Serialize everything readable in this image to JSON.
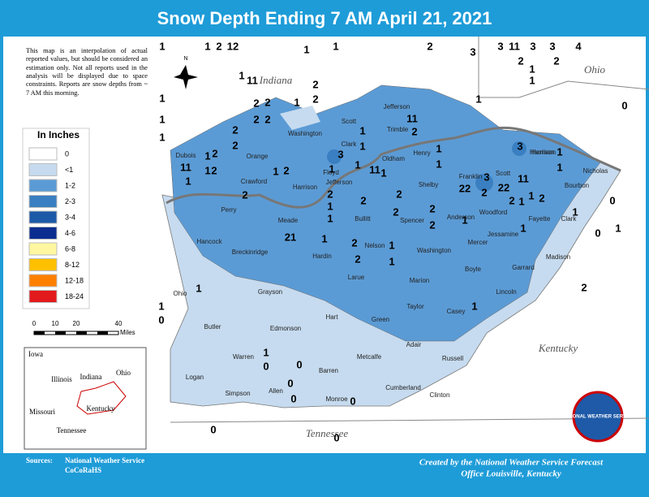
{
  "header": {
    "title": "Snow Depth Ending 7 AM April 21, 2021"
  },
  "note": "This map is an interpolation of actual reported values, but should be considered an estimation only. Not all reports used in the analysis will be displayed due to space constraints. Reports are snow depths from ~ 7 AM this morning.",
  "legend": {
    "title": "In Inches",
    "items": [
      {
        "label": "0",
        "color": "#ffffff"
      },
      {
        "label": "<1",
        "color": "#c6dbef"
      },
      {
        "label": "1-2",
        "color": "#5b9bd5"
      },
      {
        "label": "2-3",
        "color": "#3a7fc1"
      },
      {
        "label": "3-4",
        "color": "#1c5aa8"
      },
      {
        "label": "4-6",
        "color": "#0b2d8f"
      },
      {
        "label": "6-8",
        "color": "#fff7a0"
      },
      {
        "label": "8-12",
        "color": "#ffc000"
      },
      {
        "label": "12-18",
        "color": "#ff7f00"
      },
      {
        "label": "18-24",
        "color": "#e31a1c"
      }
    ]
  },
  "scale": {
    "labels": [
      "0",
      "10",
      "20",
      "40"
    ],
    "unit": "Miles"
  },
  "north": "N",
  "inset": {
    "labels": [
      "Iowa",
      "Illinois",
      "Indiana",
      "Ohio",
      "Missouri",
      "Kentucky",
      "Tennessee"
    ]
  },
  "map": {
    "states": [
      "Indiana",
      "Ohio",
      "Kentucky",
      "Tennessee"
    ],
    "counties": [
      "Dubois",
      "Orange",
      "Washington",
      "Clark",
      "Scott",
      "Jefferson",
      "Trimble",
      "Harrison",
      "Floyd",
      "Crawford",
      "Perry",
      "Harrison",
      "Jefferson",
      "Oldham",
      "Henry",
      "Shelby",
      "Franklin",
      "Scott",
      "Harrison",
      "Nicholas",
      "Bourbon",
      "Woodford",
      "Fayette",
      "Clark",
      "Jessamine",
      "Anderson",
      "Spencer",
      "Bullitt",
      "Meade",
      "Hancock",
      "Breckinridge",
      "Hardin",
      "Nelson",
      "Washington",
      "Mercer",
      "Boyle",
      "Garrard",
      "Madison",
      "Larue",
      "Marion",
      "Lincoln",
      "Ohio",
      "Grayson",
      "Hart",
      "Taylor",
      "Casey",
      "Green",
      "Butler",
      "Edmonson",
      "Adair",
      "Russell",
      "Warren",
      "Metcalfe",
      "Barren",
      "Logan",
      "Simpson",
      "Allen",
      "Monroe",
      "Cumberland",
      "Clinton"
    ],
    "reports": [
      "1",
      "1",
      "2",
      "12",
      "1",
      "1",
      "2",
      "3",
      "3",
      "11",
      "3",
      "3",
      "4",
      "2",
      "2",
      "1",
      "1",
      "1",
      "0",
      "1",
      "1",
      "1",
      "1",
      "11",
      "2",
      "2",
      "2",
      "2",
      "1",
      "2",
      "2",
      "2",
      "2",
      "1",
      "2",
      "11",
      "1",
      "2",
      "1",
      "1",
      "2",
      "3",
      "1",
      "1",
      "1",
      "1",
      "11",
      "1",
      "11",
      "2",
      "1",
      "1",
      "3",
      "1",
      "1",
      "22",
      "3",
      "2",
      "22",
      "11",
      "2",
      "1",
      "1",
      "2",
      "1",
      "2",
      "2",
      "1",
      "2",
      "2",
      "1",
      "2",
      "2",
      "2",
      "1",
      "1",
      "0",
      "0",
      "1",
      "1",
      "21",
      "2",
      "1",
      "2",
      "1",
      "1",
      "1",
      "0",
      "2",
      "1",
      "1",
      "0",
      "0",
      "0",
      "0",
      "0",
      "0",
      "0"
    ]
  },
  "footer": {
    "sources_label": "Sources:",
    "sources": [
      "National Weather Service",
      "CoCoRaHS"
    ],
    "credit": [
      "Created by the National Weather Service Forecast",
      "Office Louisville, Kentucky"
    ]
  },
  "logo": {
    "text": "NATIONAL WEATHER SERVICE"
  }
}
